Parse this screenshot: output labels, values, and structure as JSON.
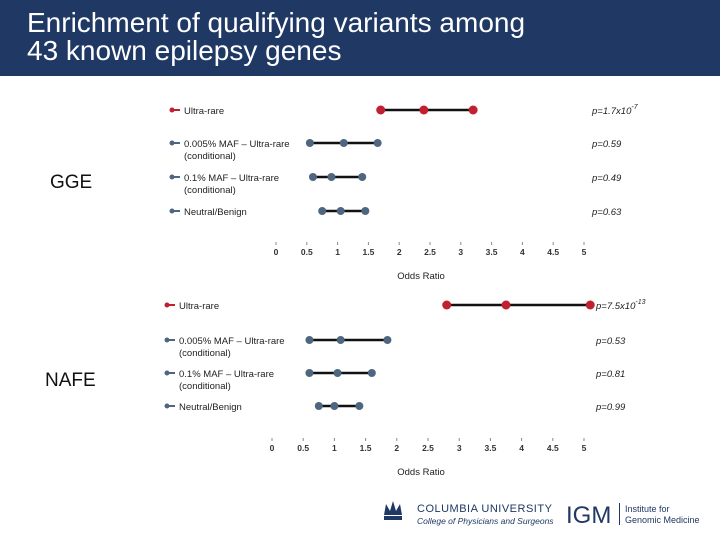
{
  "slide": {
    "title_line1": "Enrichment of qualifying variants among",
    "title_line2": "43 known epilepsy genes",
    "colors": {
      "title_bar": "#1f3864",
      "ultra_rare": "#c0202f",
      "other": "#4f6680",
      "ci_line": "#111111"
    }
  },
  "footer": {
    "columbia_line1": "COLUMBIA UNIVERSITY",
    "columbia_line2": "College of Physicians and Surgeons",
    "igm_abbrev": "IGM",
    "igm_line1": "Institute for",
    "igm_line2": "Genomic Medicine",
    "logo_icon": "crown-icon"
  },
  "chart_data": [
    {
      "type": "forest",
      "panel": "GGE",
      "xlabel": "Odds Ratio",
      "xlim": [
        0,
        5
      ],
      "xticks": [
        "0",
        "0.5",
        "1",
        "1.5",
        "2",
        "2.5",
        "3",
        "3.5",
        "4",
        "4.5",
        "5"
      ],
      "rows": [
        {
          "label_line1": "Ultra-rare",
          "label_line2": "",
          "lower": 1.7,
          "or": 2.4,
          "upper": 3.2,
          "p_text": "p=1.7x10",
          "p_exp": "-7",
          "color": "#c0202f"
        },
        {
          "label_line1": "0.005% MAF – Ultra-rare",
          "label_line2": "(conditional)",
          "lower": 0.55,
          "or": 1.1,
          "upper": 1.65,
          "p_text": "p=0.59",
          "p_exp": "",
          "color": "#4f6680"
        },
        {
          "label_line1": "0.1% MAF – Ultra-rare",
          "label_line2": "(conditional)",
          "lower": 0.6,
          "or": 0.9,
          "upper": 1.4,
          "p_text": "p=0.49",
          "p_exp": "",
          "color": "#4f6680"
        },
        {
          "label_line1": "Neutral/Benign",
          "label_line2": "",
          "lower": 0.75,
          "or": 1.05,
          "upper": 1.45,
          "p_text": "p=0.63",
          "p_exp": "",
          "color": "#4f6680"
        }
      ]
    },
    {
      "type": "forest",
      "panel": "NAFE",
      "xlabel": "Odds Ratio",
      "xlim": [
        0,
        5
      ],
      "xticks": [
        "0",
        "0.5",
        "1",
        "1.5",
        "2",
        "2.5",
        "3",
        "3.5",
        "4",
        "4.5",
        "5"
      ],
      "rows": [
        {
          "label_line1": "Ultra-rare",
          "label_line2": "",
          "lower": 2.8,
          "or": 3.75,
          "upper": 5.1,
          "p_text": "p=7.5x10",
          "p_exp": "-13",
          "color": "#c0202f"
        },
        {
          "label_line1": "0.005% MAF – Ultra-rare",
          "label_line2": "(conditional)",
          "lower": 0.6,
          "or": 1.1,
          "upper": 1.85,
          "p_text": "p=0.53",
          "p_exp": "",
          "color": "#4f6680"
        },
        {
          "label_line1": "0.1% MAF – Ultra-rare",
          "label_line2": "(conditional)",
          "lower": 0.6,
          "or": 1.05,
          "upper": 1.6,
          "p_text": "p=0.81",
          "p_exp": "",
          "color": "#4f6680"
        },
        {
          "label_line1": "Neutral/Benign",
          "label_line2": "",
          "lower": 0.75,
          "or": 1.0,
          "upper": 1.4,
          "p_text": "p=0.99",
          "p_exp": "",
          "color": "#4f6680"
        }
      ]
    }
  ]
}
